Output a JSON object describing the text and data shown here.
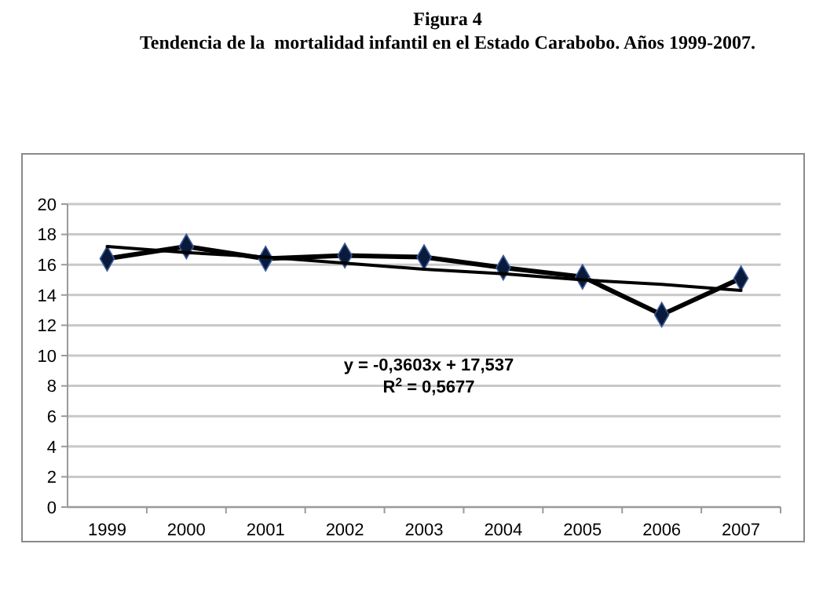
{
  "chart_data": {
    "type": "line",
    "title": "Figura 4",
    "subtitle": "Tendencia de la  mortalidad infantil en el Estado Carabobo. Años 1999-2007.",
    "categories": [
      "1999",
      "2000",
      "2001",
      "2002",
      "2003",
      "2004",
      "2005",
      "2006",
      "2007"
    ],
    "series": [
      {
        "color": "#000000",
        "values": [
          16.4,
          17.2,
          16.4,
          16.6,
          16.5,
          15.8,
          15.2,
          12.7,
          15.1
        ],
        "marker": "diamond"
      },
      {
        "type": "line",
        "color": "#000000",
        "values": [
          17.2,
          16.8,
          16.5,
          16.1,
          15.7,
          15.4,
          15.0,
          14.7,
          14.3
        ],
        "marker": "none"
      }
    ],
    "ylim": [
      0,
      20
    ],
    "yticks": [
      0,
      2,
      4,
      6,
      8,
      10,
      12,
      14,
      16,
      18,
      20
    ],
    "grid": "y",
    "line_style": "solid",
    "annotations": [
      "y = -0,3603x + 17,537",
      "R$^{2}$ = 0,5677"
    ]
  }
}
